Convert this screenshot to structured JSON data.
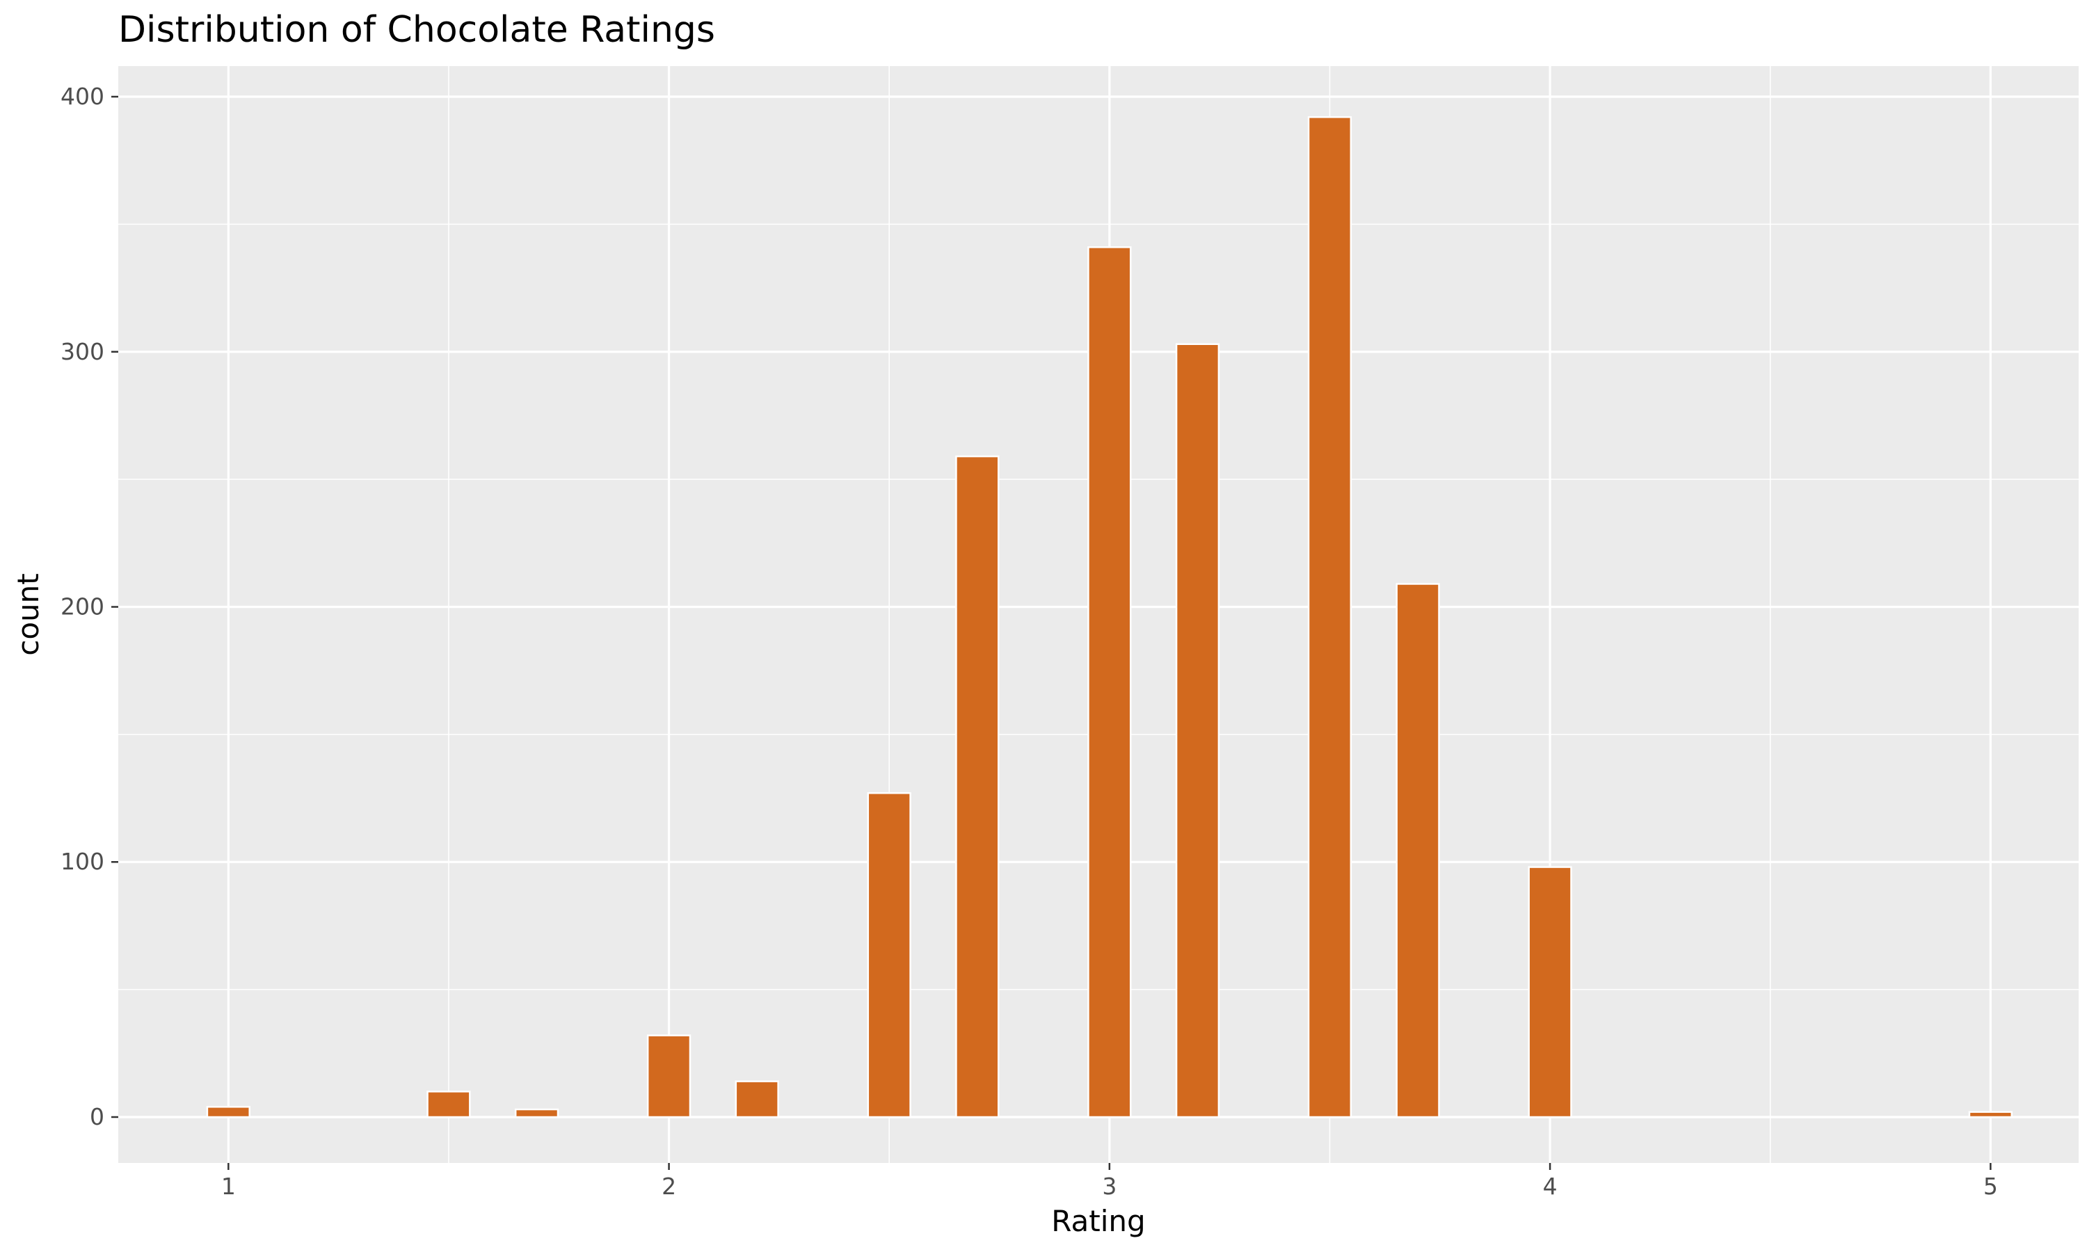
{
  "chart_data": {
    "type": "bar",
    "title": "Distribution of Chocolate Ratings",
    "xlabel": "Rating",
    "ylabel": "count",
    "xlim": [
      0.75,
      5.2
    ],
    "ylim": [
      -18,
      412
    ],
    "x_ticks": [
      1,
      2,
      3,
      4,
      5
    ],
    "y_ticks": [
      0,
      100,
      200,
      300,
      400
    ],
    "bin_width": 0.1,
    "bars": [
      {
        "x": 1.0,
        "count": 4
      },
      {
        "x": 1.5,
        "count": 10
      },
      {
        "x": 1.7,
        "count": 3
      },
      {
        "x": 2.0,
        "count": 32
      },
      {
        "x": 2.2,
        "count": 14
      },
      {
        "x": 2.5,
        "count": 127
      },
      {
        "x": 2.7,
        "count": 259
      },
      {
        "x": 3.0,
        "count": 341
      },
      {
        "x": 3.2,
        "count": 303
      },
      {
        "x": 3.5,
        "count": 392
      },
      {
        "x": 3.7,
        "count": 209
      },
      {
        "x": 4.0,
        "count": 98
      },
      {
        "x": 5.0,
        "count": 2
      }
    ],
    "grid": true,
    "colors": {
      "bar_fill": "#D2691E",
      "bar_outline": "#ffffff",
      "panel_background": "#EBEBEB",
      "grid_line": "#ffffff"
    }
  }
}
